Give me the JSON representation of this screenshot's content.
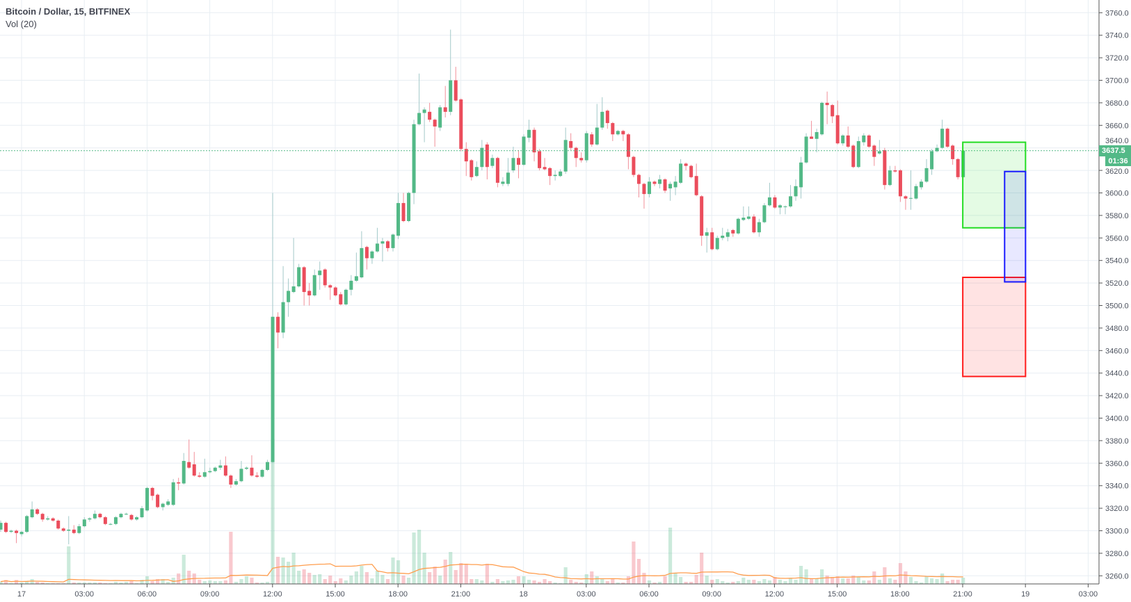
{
  "legend": {
    "title": "Bitcoin / Dollar, 15, BITFINEX",
    "indicator": "Vol (20)"
  },
  "price_scale": {
    "last_price": "3637.5",
    "countdown": "01:36"
  },
  "colors": {
    "up": "#53b987",
    "down": "#eb4d5c",
    "volume_ma": "#ff9d4d",
    "grid": "#e8eef3",
    "axis_text": "#4c525e"
  },
  "chart_data": {
    "type": "candlestick",
    "symbol": "Bitcoin / Dollar",
    "interval": "15",
    "exchange": "BITFINEX",
    "ylim": [
      3260,
      3760
    ],
    "grid": true,
    "y_ticks": [
      "3260.0",
      "3280.0",
      "3300.0",
      "3320.0",
      "3340.0",
      "3360.0",
      "3380.0",
      "3400.0",
      "3420.0",
      "3440.0",
      "3460.0",
      "3480.0",
      "3500.0",
      "3520.0",
      "3540.0",
      "3560.0",
      "3580.0",
      "3600.0",
      "3620.0",
      "3640.0",
      "3660.0",
      "3680.0",
      "3700.0",
      "3720.0",
      "3740.0",
      "3760.0"
    ],
    "x_ticks": [
      "17",
      "03:00",
      "06:00",
      "09:00",
      "12:00",
      "15:00",
      "18:00",
      "21:00",
      "18",
      "03:00",
      "06:00",
      "09:00",
      "12:00",
      "15:00",
      "18:00",
      "21:00",
      "19",
      "03:00"
    ],
    "first_bar": "16 23:00",
    "ohlc": [
      [
        3301,
        3309,
        3299,
        3307
      ],
      [
        3307,
        3308,
        3298,
        3299
      ],
      [
        3299,
        3301,
        3298,
        3300
      ],
      [
        3300,
        3301,
        3289,
        3298
      ],
      [
        3297,
        3300,
        3295,
        3299
      ],
      [
        3299,
        3314,
        3298,
        3313
      ],
      [
        3312,
        3326,
        3311,
        3319
      ],
      [
        3319,
        3320,
        3314,
        3315
      ],
      [
        3315,
        3316,
        3308,
        3310
      ],
      [
        3310,
        3313,
        3309,
        3311
      ],
      [
        3311,
        3312,
        3308,
        3309
      ],
      [
        3309,
        3310,
        3301,
        3302
      ],
      [
        3302,
        3303,
        3299,
        3300
      ],
      [
        3300,
        3313,
        3288,
        3301
      ],
      [
        3301,
        3305,
        3297,
        3298
      ],
      [
        3298,
        3306,
        3297,
        3304
      ],
      [
        3304,
        3312,
        3303,
        3310
      ],
      [
        3310,
        3312,
        3308,
        3311
      ],
      [
        3311,
        3318,
        3310,
        3315
      ],
      [
        3315,
        3316,
        3311,
        3312
      ],
      [
        3312,
        3313,
        3305,
        3306
      ],
      [
        3306,
        3307,
        3305,
        3306
      ],
      [
        3306,
        3313,
        3305,
        3312
      ],
      [
        3312,
        3316,
        3311,
        3315
      ],
      [
        3315,
        3316,
        3314,
        3315
      ],
      [
        3314,
        3315,
        3309,
        3310
      ],
      [
        3310,
        3313,
        3309,
        3312
      ],
      [
        3312,
        3322,
        3311,
        3320
      ],
      [
        3318,
        3339,
        3317,
        3338
      ],
      [
        3338,
        3339,
        3327,
        3331
      ],
      [
        3332,
        3333,
        3320,
        3321
      ],
      [
        3321,
        3325,
        3318,
        3324
      ],
      [
        3323,
        3328,
        3322,
        3326
      ],
      [
        3323,
        3346,
        3322,
        3343
      ],
      [
        3343,
        3347,
        3336,
        3342
      ],
      [
        3342,
        3369,
        3341,
        3362
      ],
      [
        3361,
        3381,
        3355,
        3356
      ],
      [
        3359,
        3370,
        3348,
        3349
      ],
      [
        3349,
        3352,
        3347,
        3348
      ],
      [
        3348,
        3364,
        3347,
        3352
      ],
      [
        3352,
        3356,
        3351,
        3353
      ],
      [
        3353,
        3357,
        3352,
        3356
      ],
      [
        3356,
        3363,
        3354,
        3358
      ],
      [
        3358,
        3366,
        3348,
        3349
      ],
      [
        3349,
        3350,
        3338,
        3341
      ],
      [
        3341,
        3346,
        3340,
        3344
      ],
      [
        3344,
        3362,
        3343,
        3355
      ],
      [
        3355,
        3357,
        3354,
        3356
      ],
      [
        3356,
        3367,
        3348,
        3349
      ],
      [
        3349,
        3352,
        3347,
        3348
      ],
      [
        3348,
        3355,
        3347,
        3354
      ],
      [
        3354,
        3363,
        3353,
        3361
      ],
      [
        3361,
        3600,
        3360,
        3490
      ],
      [
        3490,
        3494,
        3462,
        3476
      ],
      [
        3476,
        3535,
        3471,
        3503
      ],
      [
        3503,
        3524,
        3490,
        3513
      ],
      [
        3512,
        3560,
        3511,
        3517
      ],
      [
        3517,
        3537,
        3516,
        3534
      ],
      [
        3534,
        3535,
        3500,
        3512
      ],
      [
        3513,
        3520,
        3500,
        3509
      ],
      [
        3509,
        3532,
        3508,
        3527
      ],
      [
        3527,
        3539,
        3514,
        3531
      ],
      [
        3532,
        3533,
        3516,
        3518
      ],
      [
        3518,
        3519,
        3505,
        3516
      ],
      [
        3516,
        3517,
        3508,
        3509
      ],
      [
        3510,
        3512,
        3500,
        3501
      ],
      [
        3501,
        3515,
        3500,
        3514
      ],
      [
        3514,
        3527,
        3509,
        3522
      ],
      [
        3522,
        3547,
        3521,
        3526
      ],
      [
        3525,
        3566,
        3524,
        3551
      ],
      [
        3552,
        3553,
        3532,
        3542
      ],
      [
        3542,
        3549,
        3537,
        3548
      ],
      [
        3548,
        3569,
        3547,
        3555
      ],
      [
        3555,
        3560,
        3539,
        3557
      ],
      [
        3557,
        3558,
        3548,
        3551
      ],
      [
        3551,
        3564,
        3548,
        3563
      ],
      [
        3562,
        3600,
        3559,
        3591
      ],
      [
        3591,
        3600,
        3574,
        3575
      ],
      [
        3575,
        3601,
        3574,
        3600
      ],
      [
        3600,
        3665,
        3590,
        3661
      ],
      [
        3661,
        3706,
        3660,
        3671
      ],
      [
        3671,
        3676,
        3645,
        3674
      ],
      [
        3672,
        3680,
        3663,
        3665
      ],
      [
        3665,
        3666,
        3641,
        3659
      ],
      [
        3658,
        3678,
        3655,
        3676
      ],
      [
        3676,
        3695,
        3667,
        3672
      ],
      [
        3672,
        3745,
        3669,
        3700
      ],
      [
        3700,
        3712,
        3681,
        3682
      ],
      [
        3683,
        3684,
        3637,
        3639
      ],
      [
        3639,
        3645,
        3615,
        3628
      ],
      [
        3629,
        3630,
        3611,
        3614
      ],
      [
        3615,
        3628,
        3614,
        3623
      ],
      [
        3623,
        3647,
        3620,
        3640
      ],
      [
        3643,
        3645,
        3612,
        3623
      ],
      [
        3624,
        3634,
        3622,
        3631
      ],
      [
        3631,
        3632,
        3605,
        3609
      ],
      [
        3608,
        3614,
        3606,
        3610
      ],
      [
        3608,
        3631,
        3606,
        3618
      ],
      [
        3620,
        3641,
        3618,
        3631
      ],
      [
        3631,
        3638,
        3613,
        3625
      ],
      [
        3625,
        3652,
        3624,
        3650
      ],
      [
        3649,
        3665,
        3645,
        3656
      ],
      [
        3656,
        3658,
        3628,
        3636
      ],
      [
        3637,
        3639,
        3620,
        3622
      ],
      [
        3623,
        3631,
        3620,
        3621
      ],
      [
        3622,
        3623,
        3607,
        3615
      ],
      [
        3615,
        3620,
        3611,
        3616
      ],
      [
        3615,
        3621,
        3614,
        3619
      ],
      [
        3619,
        3658,
        3617,
        3647
      ],
      [
        3646,
        3653,
        3638,
        3640
      ],
      [
        3640,
        3641,
        3623,
        3631
      ],
      [
        3631,
        3636,
        3627,
        3629
      ],
      [
        3629,
        3655,
        3627,
        3653
      ],
      [
        3652,
        3654,
        3641,
        3643
      ],
      [
        3643,
        3679,
        3642,
        3658
      ],
      [
        3658,
        3685,
        3656,
        3672
      ],
      [
        3673,
        3674,
        3657,
        3662
      ],
      [
        3662,
        3663,
        3646,
        3652
      ],
      [
        3652,
        3656,
        3651,
        3655
      ],
      [
        3655,
        3656,
        3646,
        3652
      ],
      [
        3652,
        3653,
        3621,
        3632
      ],
      [
        3632,
        3633,
        3614,
        3616
      ],
      [
        3616,
        3617,
        3596,
        3608
      ],
      [
        3608,
        3609,
        3586,
        3599
      ],
      [
        3599,
        3614,
        3596,
        3610
      ],
      [
        3610,
        3611,
        3606,
        3608
      ],
      [
        3608,
        3616,
        3604,
        3612
      ],
      [
        3612,
        3613,
        3600,
        3602
      ],
      [
        3604,
        3610,
        3593,
        3608
      ],
      [
        3605,
        3615,
        3598,
        3610
      ],
      [
        3609,
        3630,
        3608,
        3626
      ],
      [
        3626,
        3627,
        3620,
        3624
      ],
      [
        3624,
        3625,
        3613,
        3614
      ],
      [
        3615,
        3626,
        3597,
        3598
      ],
      [
        3597,
        3598,
        3553,
        3562
      ],
      [
        3562,
        3569,
        3547,
        3565
      ],
      [
        3565,
        3569,
        3549,
        3550
      ],
      [
        3550,
        3562,
        3549,
        3560
      ],
      [
        3560,
        3569,
        3558,
        3562
      ],
      [
        3561,
        3568,
        3557,
        3565
      ],
      [
        3567,
        3568,
        3561,
        3564
      ],
      [
        3564,
        3578,
        3563,
        3577
      ],
      [
        3576,
        3588,
        3575,
        3578
      ],
      [
        3577,
        3588,
        3576,
        3579
      ],
      [
        3579,
        3581,
        3564,
        3565
      ],
      [
        3565,
        3577,
        3561,
        3574
      ],
      [
        3574,
        3591,
        3573,
        3589
      ],
      [
        3589,
        3609,
        3588,
        3596
      ],
      [
        3596,
        3598,
        3586,
        3587
      ],
      [
        3587,
        3590,
        3581,
        3589
      ],
      [
        3588,
        3589,
        3581,
        3588
      ],
      [
        3588,
        3607,
        3587,
        3597
      ],
      [
        3597,
        3612,
        3593,
        3606
      ],
      [
        3605,
        3632,
        3595,
        3627
      ],
      [
        3627,
        3653,
        3626,
        3650
      ],
      [
        3650,
        3664,
        3649,
        3648
      ],
      [
        3648,
        3657,
        3636,
        3654
      ],
      [
        3652,
        3681,
        3651,
        3680
      ],
      [
        3680,
        3690,
        3661,
        3678
      ],
      [
        3678,
        3679,
        3662,
        3668
      ],
      [
        3669,
        3682,
        3643,
        3644
      ],
      [
        3644,
        3652,
        3642,
        3651
      ],
      [
        3651,
        3659,
        3640,
        3641
      ],
      [
        3642,
        3643,
        3622,
        3623
      ],
      [
        3623,
        3650,
        3622,
        3646
      ],
      [
        3645,
        3653,
        3642,
        3651
      ],
      [
        3651,
        3652,
        3640,
        3641
      ],
      [
        3642,
        3643,
        3624,
        3632
      ],
      [
        3635,
        3647,
        3634,
        3637
      ],
      [
        3638,
        3640,
        3603,
        3607
      ],
      [
        3607,
        3624,
        3606,
        3620
      ],
      [
        3620,
        3624,
        3618,
        3619
      ],
      [
        3620,
        3621,
        3592,
        3597
      ],
      [
        3597,
        3598,
        3585,
        3595
      ],
      [
        3595,
        3620,
        3585,
        3595.5
      ],
      [
        3595,
        3608,
        3594,
        3606
      ],
      [
        3605,
        3612,
        3603,
        3610
      ],
      [
        3610,
        3630,
        3609,
        3622
      ],
      [
        3621,
        3639,
        3616,
        3637
      ],
      [
        3637,
        3643,
        3636,
        3640
      ],
      [
        3640,
        3665,
        3639,
        3657
      ],
      [
        3657,
        3658,
        3640,
        3641
      ],
      [
        3642,
        3643,
        3625,
        3630
      ],
      [
        3630,
        3631,
        3612,
        3614
      ],
      [
        3614,
        3637.5,
        3613,
        3637.5
      ]
    ],
    "volume_relative": [
      3.3,
      5.7,
      1,
      5.7,
      2,
      4.3,
      7,
      3,
      2,
      1,
      1,
      1,
      1,
      54,
      2,
      2,
      2,
      2,
      2,
      2,
      1,
      1,
      3,
      2,
      3,
      4,
      1,
      6,
      11,
      4,
      7,
      7,
      3,
      9,
      15,
      42,
      19,
      15,
      6,
      4,
      5,
      4,
      4,
      5,
      75,
      3,
      7,
      11,
      9,
      2,
      2,
      3,
      209,
      39,
      38,
      32,
      45,
      19,
      21,
      16,
      13,
      14,
      7,
      12,
      4,
      8,
      5,
      12,
      18,
      26,
      17,
      8,
      19,
      13,
      7,
      38,
      34,
      12,
      9,
      74,
      78,
      45,
      17,
      25,
      12,
      35,
      46,
      20,
      30,
      29,
      7,
      7,
      5,
      29,
      3,
      7,
      4,
      5,
      6,
      11,
      11,
      6,
      5,
      3,
      7,
      4,
      2,
      1,
      24,
      6,
      3,
      2,
      14,
      18,
      11,
      8,
      4,
      7,
      2,
      2,
      11,
      61,
      36,
      16,
      5,
      2,
      3,
      11,
      81,
      16,
      10,
      3,
      3,
      13,
      45,
      12,
      6,
      7,
      4,
      2,
      3,
      4,
      9,
      6,
      6,
      4,
      7,
      5,
      10,
      6,
      4,
      8,
      6,
      26,
      21,
      8,
      8,
      21,
      12,
      10,
      11,
      8,
      8,
      12,
      10,
      5,
      5,
      18,
      6,
      24,
      8,
      6,
      30,
      18,
      10,
      4,
      2,
      11,
      8,
      7,
      15,
      4,
      6,
      6,
      9
    ],
    "volume_ma_length": 20,
    "drawings": [
      {
        "shape": "rectangle",
        "border": "#22dd22",
        "fill": "rgba(34,221,34,0.12)",
        "price_top": 3645,
        "price_bottom": 3569,
        "start": "18 21:00",
        "end": "19 00:00"
      },
      {
        "shape": "rectangle",
        "border": "#ff1a1a",
        "fill": "rgba(255,26,26,0.12)",
        "price_top": 3525,
        "price_bottom": 3437,
        "start": "18 21:00",
        "end": "19 00:00"
      },
      {
        "shape": "rectangle",
        "border": "#1a1aff",
        "fill": "rgba(26,26,255,0.10)",
        "price_top": 3619,
        "price_bottom": 3521,
        "start": "18 23:00",
        "end": "19 00:00"
      }
    ]
  }
}
